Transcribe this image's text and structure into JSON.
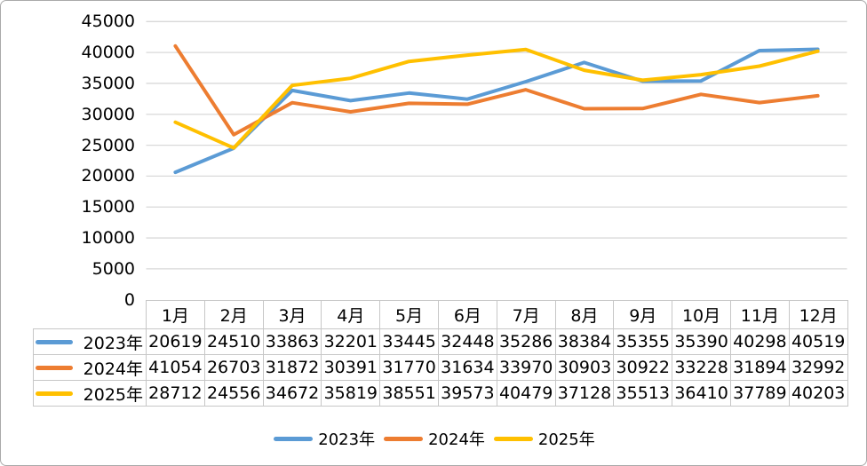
{
  "chart_data": {
    "type": "line",
    "title": "",
    "xlabel": "",
    "ylabel": "",
    "categories": [
      "1月",
      "2月",
      "3月",
      "4月",
      "5月",
      "6月",
      "7月",
      "8月",
      "9月",
      "10月",
      "11月",
      "12月"
    ],
    "series": [
      {
        "name": "2023年",
        "color": "#5B9BD5",
        "values": [
          20619,
          24510,
          33863,
          32201,
          33445,
          32448,
          35286,
          38384,
          35355,
          35390,
          40298,
          40519
        ]
      },
      {
        "name": "2024年",
        "color": "#ED7D31",
        "values": [
          41054,
          26703,
          31872,
          30391,
          31770,
          31634,
          33970,
          30903,
          30922,
          33228,
          31894,
          32992
        ]
      },
      {
        "name": "2025年",
        "color": "#FFC000",
        "values": [
          28712,
          24556,
          34672,
          35819,
          38551,
          39573,
          40479,
          37128,
          35513,
          36410,
          37789,
          40203
        ]
      }
    ],
    "ylim": [
      0,
      45000
    ],
    "ytick_step": 5000,
    "yticks": [
      "45000",
      "40000",
      "35000",
      "30000",
      "25000",
      "20000",
      "15000",
      "10000",
      "5000",
      "0"
    ],
    "grid": "horizontal-only",
    "gridline_color": "#D9D9D9",
    "legend_position": "bottom",
    "table_border_color": "#C7C7C7"
  }
}
